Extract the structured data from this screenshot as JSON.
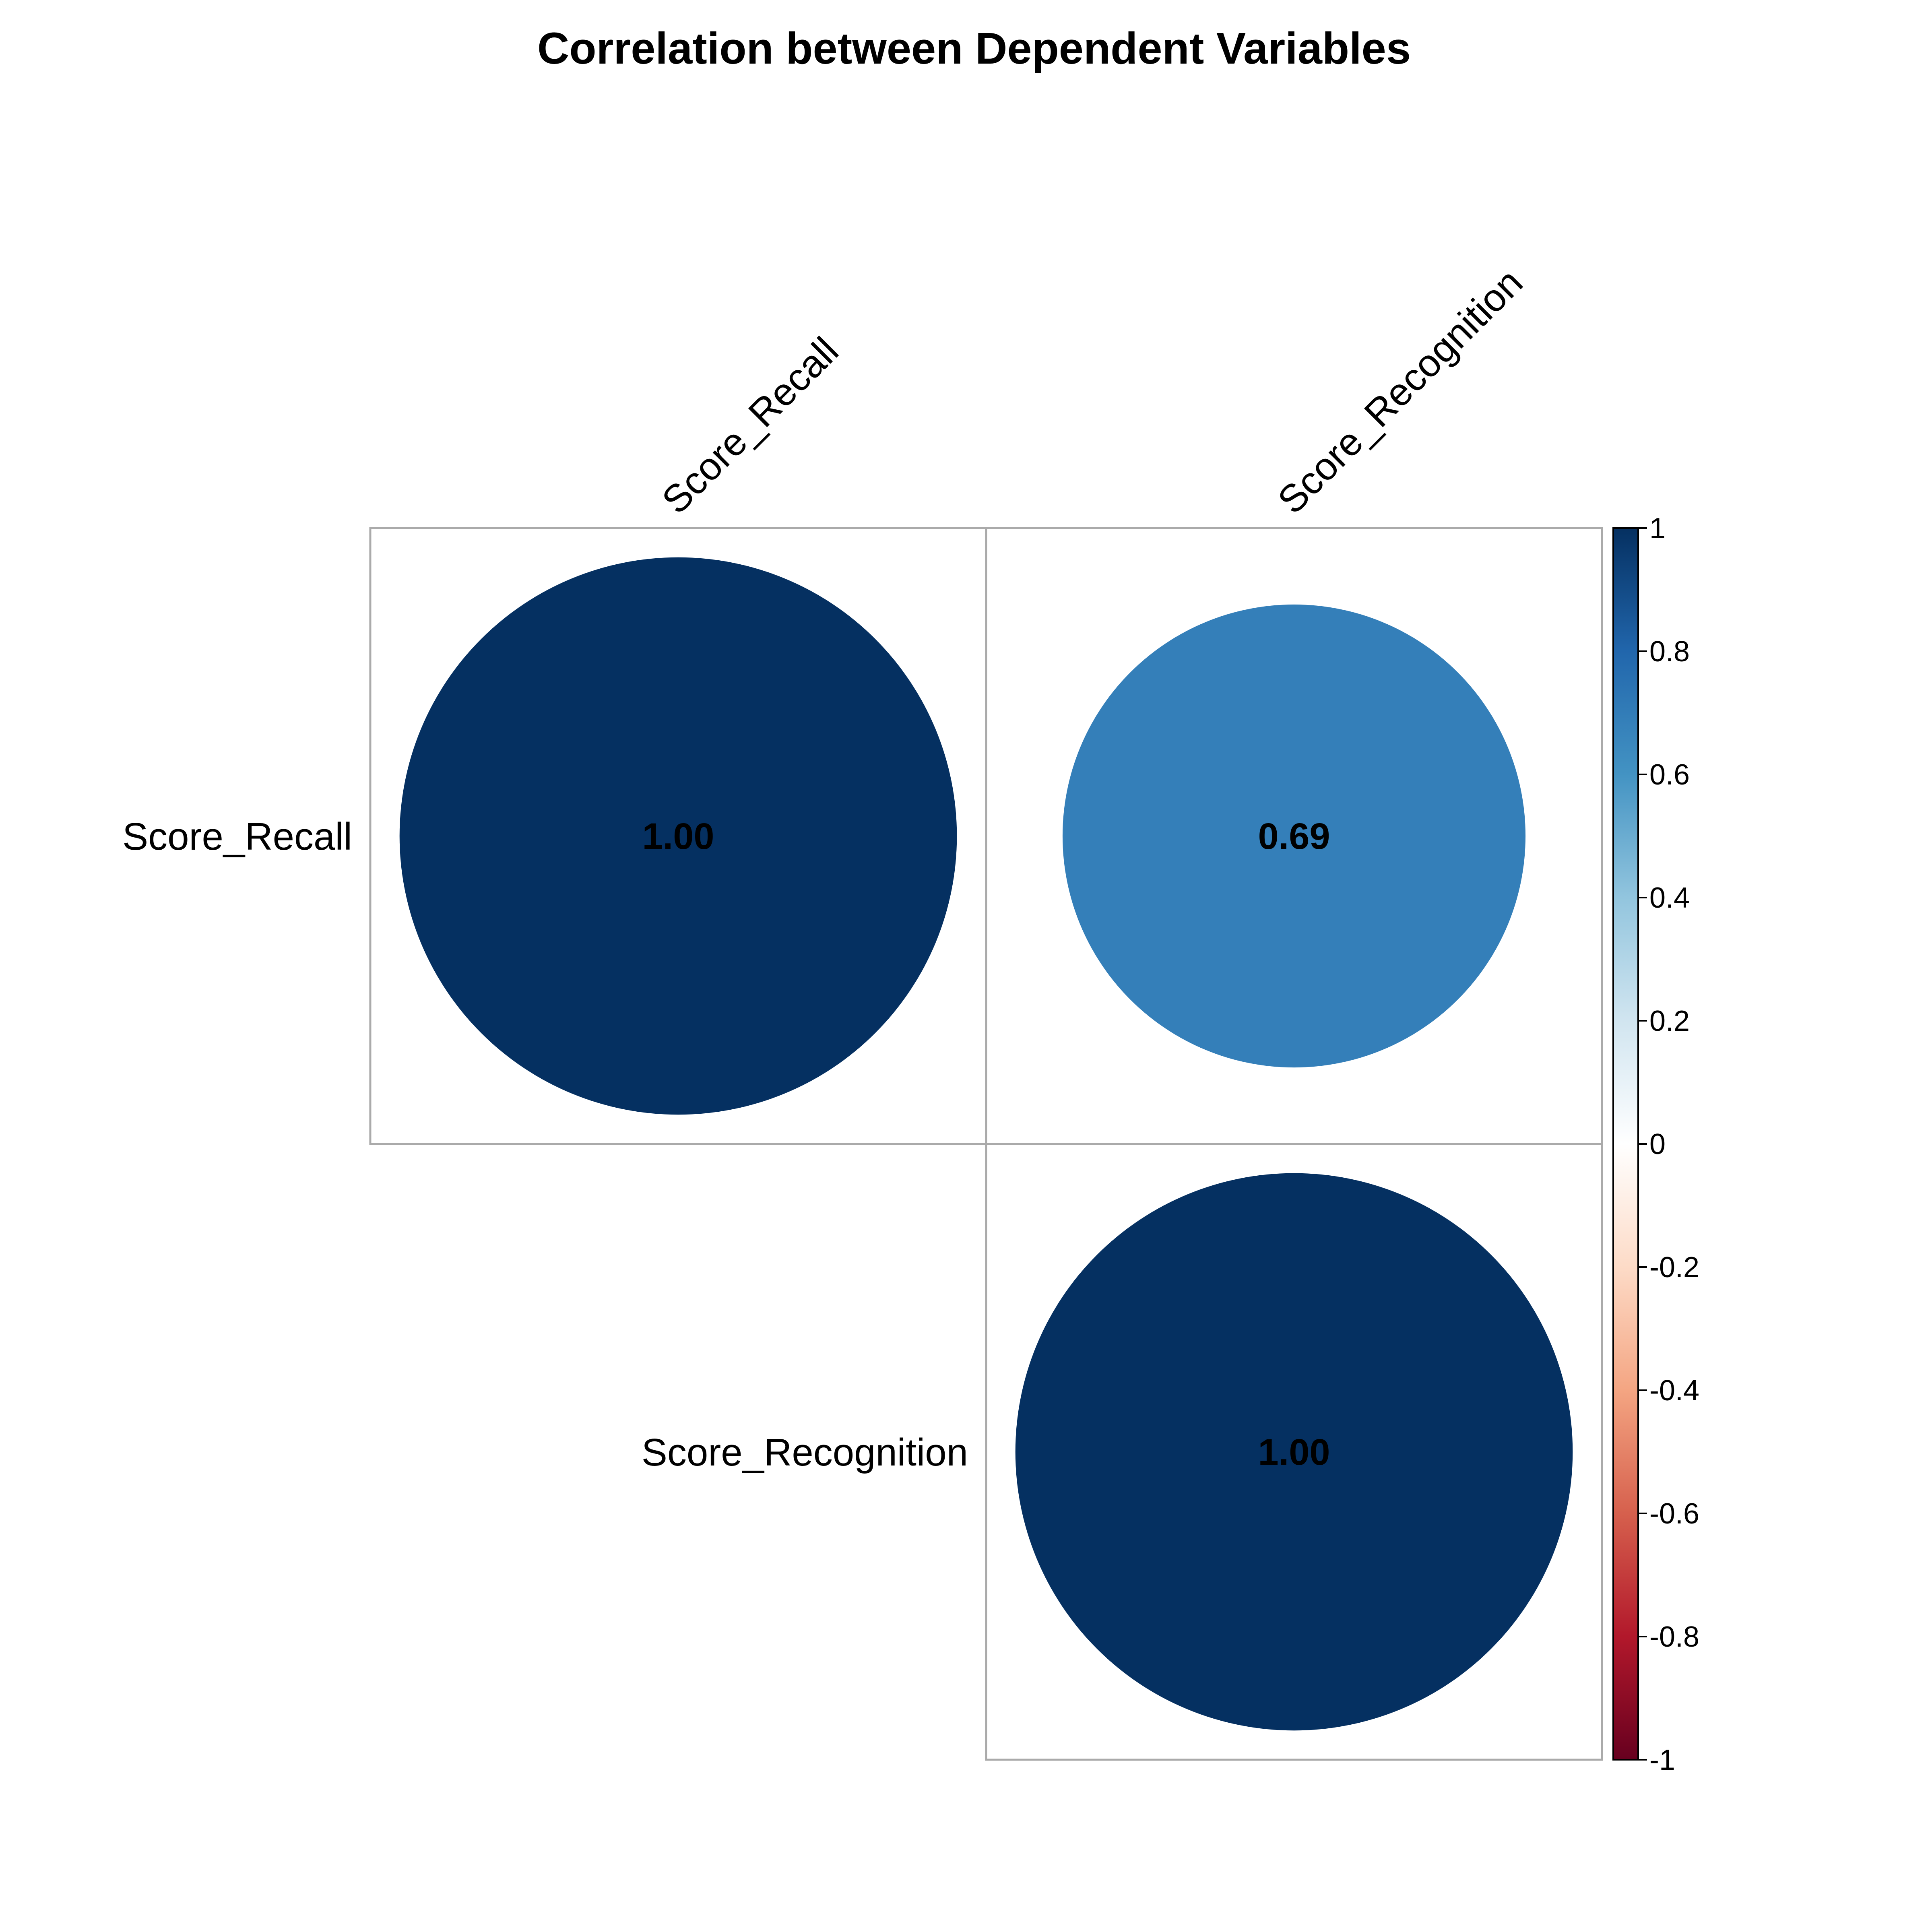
{
  "chart_data": {
    "type": "heatmap",
    "subtype": "correlation-circle-upper",
    "title": "Correlation between Dependent Variables",
    "variables": [
      "Score_Recall",
      "Score_Recognition"
    ],
    "matrix": [
      [
        1.0,
        0.69
      ],
      [
        0.69,
        1.0
      ]
    ],
    "cell_labels": [
      [
        "1.00",
        "0.69"
      ],
      [
        "",
        "1.00"
      ]
    ],
    "shown_triangle": "upper",
    "colorbar": {
      "range": [
        -1,
        1
      ],
      "ticks": [
        1,
        0.8,
        0.6,
        0.4,
        0.2,
        0,
        -0.2,
        -0.4,
        -0.6,
        -0.8,
        -1
      ],
      "tick_labels": [
        "1",
        "0.8",
        "0.6",
        "0.4",
        "0.2",
        "0",
        "-0.2",
        "-0.4",
        "-0.6",
        "-0.8",
        "-1"
      ],
      "colors": [
        "#67001F",
        "#B2182B",
        "#D6604D",
        "#F4A582",
        "#FDDBC7",
        "#FFFFFF",
        "#D1E5F0",
        "#92C5DE",
        "#4393C3",
        "#2166AC",
        "#053061"
      ]
    },
    "grid_color": "#AAAAAA"
  }
}
